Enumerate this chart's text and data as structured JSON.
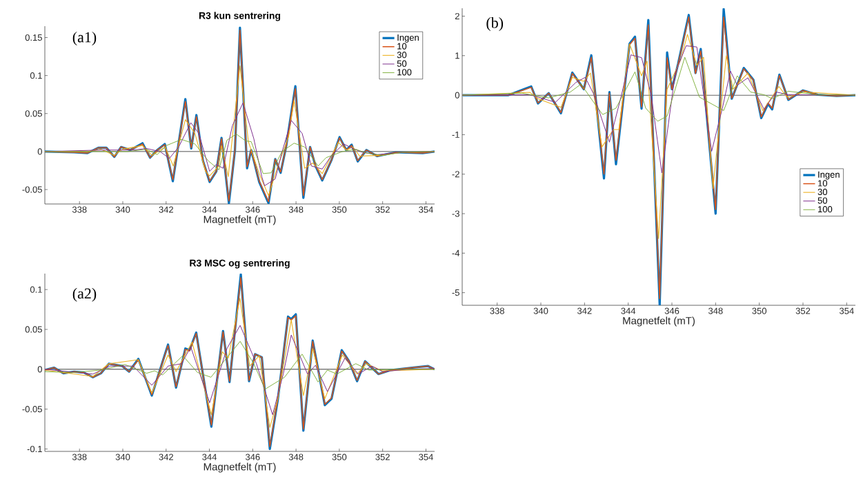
{
  "chart_data": [
    {
      "type": "line",
      "title": "R3 kun sentrering",
      "xlabel": "Magnetfelt (mT)",
      "annotations": [
        "(a1)"
      ],
      "legend": "top right",
      "xlim": [
        336.4,
        354.4
      ],
      "ylim": [
        -0.069,
        0.165
      ],
      "xticks": [
        338,
        340,
        342,
        344,
        346,
        348,
        350,
        352,
        354
      ],
      "yticks": [
        -0.05,
        0,
        0.05,
        0.1,
        0.15
      ],
      "ref_lines": [
        {
          "axis": "y",
          "value": 0,
          "color": "#262626"
        }
      ],
      "series": [
        {
          "name": "Ingen",
          "color": "#0072bd",
          "x": [
            336.4,
            337.75,
            338.37,
            338.87,
            339.24,
            339.61,
            339.92,
            340.35,
            340.91,
            341.26,
            341.59,
            341.94,
            342.31,
            342.89,
            343.16,
            343.4,
            343.7,
            344.01,
            344.32,
            344.56,
            344.9,
            345.18,
            345.41,
            345.74,
            345.93,
            346.3,
            346.73,
            347.04,
            347.29,
            347.54,
            347.97,
            348.34,
            348.65,
            348.9,
            349.21,
            349.64,
            350.01,
            350.32,
            350.57,
            350.85,
            351.25,
            351.75,
            352.61,
            353.85,
            354.4
          ],
          "values": [
            0,
            -0.001,
            -0.002,
            0.005,
            0.005,
            -0.007,
            0.006,
            0.002,
            0.011,
            -0.008,
            0.002,
            0.01,
            -0.039,
            0.069,
            0.004,
            0.048,
            -0.012,
            -0.04,
            -0.026,
            0.018,
            -0.068,
            0.002,
            0.163,
            -0.022,
            0.002,
            -0.04,
            -0.068,
            -0.01,
            -0.028,
            0.006,
            0.086,
            -0.061,
            0.006,
            -0.019,
            -0.038,
            -0.011,
            0.019,
            0.002,
            0.009,
            -0.013,
            0.002,
            -0.006,
            -0.001,
            -0.002,
            0
          ]
        },
        {
          "name": "10",
          "color": "#d95319",
          "x": [
            336.4,
            337.75,
            338.37,
            338.87,
            339.24,
            339.61,
            339.92,
            340.35,
            340.91,
            341.26,
            341.59,
            341.94,
            342.31,
            342.89,
            343.16,
            343.4,
            343.7,
            344.01,
            344.32,
            344.56,
            344.9,
            345.18,
            345.41,
            345.74,
            345.93,
            346.3,
            346.73,
            347.04,
            347.29,
            347.54,
            347.97,
            348.34,
            348.65,
            348.9,
            349.21,
            349.64,
            350.01,
            350.32,
            350.57,
            350.85,
            351.25,
            351.75,
            352.61,
            353.85,
            354.4
          ],
          "values": [
            0,
            -0.001,
            -0.002,
            0.005,
            0.005,
            -0.007,
            0.006,
            0.002,
            0.01,
            -0.008,
            0.002,
            0.009,
            -0.037,
            0.066,
            0.005,
            0.046,
            -0.012,
            -0.039,
            -0.026,
            0.017,
            -0.065,
            0.002,
            0.16,
            -0.02,
            0.002,
            -0.039,
            -0.066,
            -0.01,
            -0.027,
            0.006,
            0.083,
            -0.058,
            0.006,
            -0.018,
            -0.037,
            -0.011,
            0.018,
            0.002,
            0.008,
            -0.012,
            0.002,
            -0.006,
            -0.001,
            -0.002,
            0
          ]
        },
        {
          "name": "30",
          "color": "#edb120",
          "x": [
            336.4,
            338.37,
            338.99,
            339.61,
            339.98,
            340.91,
            341.34,
            341.96,
            342.33,
            342.89,
            343.33,
            343.82,
            344.01,
            344.44,
            344.56,
            344.87,
            345.41,
            345.8,
            346.3,
            346.73,
            347.16,
            347.66,
            347.91,
            348.4,
            348.77,
            349.21,
            349.95,
            350.32,
            350.63,
            350.94,
            351.87,
            352.98,
            354.4
          ],
          "values": [
            0,
            0,
            0.003,
            -0.005,
            0.003,
            0.008,
            -0.005,
            0.006,
            -0.019,
            0.042,
            0.024,
            -0.026,
            -0.032,
            -0.019,
            0.008,
            -0.033,
            0.113,
            0.013,
            -0.029,
            -0.058,
            -0.019,
            0.02,
            0.067,
            -0.022,
            -0.015,
            -0.029,
            0.012,
            0.002,
            0.006,
            -0.006,
            -0.005,
            -0.001,
            0
          ]
        },
        {
          "name": "50",
          "color": "#7e2f8e",
          "x": [
            336.4,
            338.99,
            340.48,
            341.1,
            341.72,
            342.15,
            342.58,
            343.14,
            343.51,
            344.01,
            344.32,
            344.63,
            345.06,
            345.55,
            346.05,
            346.42,
            346.55,
            347.04,
            347.35,
            347.78,
            348.28,
            348.71,
            349.21,
            349.64,
            350.2,
            350.63,
            351.07,
            351.75,
            352.98,
            354.4
          ],
          "values": [
            0,
            0.002,
            0.002,
            0.004,
            0,
            -0.009,
            0.006,
            0.038,
            0.024,
            -0.026,
            -0.017,
            -0.022,
            0.034,
            0.064,
            0.017,
            -0.033,
            -0.045,
            -0.036,
            -0.001,
            0.041,
            0.024,
            -0.019,
            -0.023,
            -0.005,
            0.01,
            0.004,
            -0.001,
            -0.004,
            -0.001,
            0
          ]
        },
        {
          "name": "100",
          "color": "#77ac30",
          "x": [
            336.4,
            340.23,
            341.1,
            341.59,
            342.02,
            342.71,
            343.33,
            343.94,
            344.44,
            344.81,
            345.24,
            345.68,
            345.93,
            346.48,
            346.85,
            347.35,
            347.91,
            348.4,
            349.02,
            349.39,
            350.14,
            350.76,
            351.25,
            352.0,
            352.86,
            354.4
          ],
          "values": [
            0,
            0,
            0.003,
            -0.004,
            0.008,
            0.016,
            0.01,
            -0.012,
            -0.024,
            0.015,
            0.023,
            0.014,
            0.013,
            -0.029,
            -0.028,
            0,
            0.011,
            0.006,
            -0.019,
            -0.008,
            0,
            0.003,
            -0.002,
            -0.005,
            -0.001,
            0
          ]
        }
      ]
    },
    {
      "type": "line",
      "xlabel": "Magnetfelt (mT)",
      "annotations": [
        "(b)"
      ],
      "legend": "right",
      "xlim": [
        336.4,
        354.4
      ],
      "ylim": [
        -5.32,
        2.2
      ],
      "xticks": [
        338,
        340,
        342,
        344,
        346,
        348,
        350,
        352,
        354
      ],
      "yticks": [
        -5,
        -4,
        -3,
        -2,
        -1,
        0,
        1,
        2
      ],
      "ref_lines": [
        {
          "axis": "y",
          "value": 0,
          "color": "#262626"
        }
      ],
      "series": [
        {
          "name": "Ingen",
          "color": "#0072bd",
          "x": [
            336.42,
            338.52,
            339.56,
            339.87,
            340.36,
            340.92,
            341.44,
            341.97,
            342.31,
            342.89,
            343.14,
            343.44,
            344.06,
            344.31,
            344.61,
            344.92,
            345.44,
            345.78,
            346.0,
            346.28,
            346.77,
            347.08,
            347.32,
            348.0,
            348.37,
            348.74,
            349.29,
            349.73,
            350.09,
            350.4,
            350.59,
            350.92,
            351.33,
            352.0,
            352.68,
            353.54,
            354.4
          ],
          "values": [
            0,
            0,
            0.22,
            -0.21,
            0.05,
            -0.46,
            0.57,
            0.15,
            1.01,
            -2.11,
            0.08,
            -1.75,
            1.3,
            1.48,
            -0.34,
            1.9,
            -5.31,
            1.08,
            0.15,
            0.79,
            2.03,
            0.56,
            1.17,
            -3.0,
            2.18,
            -0.09,
            0.69,
            0.39,
            -0.58,
            -0.22,
            -0.36,
            0.52,
            -0.12,
            0.12,
            0.01,
            -0.02,
            0
          ]
        },
        {
          "name": "10",
          "color": "#d95319",
          "x": [
            336.42,
            338.52,
            339.56,
            339.87,
            340.36,
            340.92,
            341.44,
            341.97,
            342.31,
            342.89,
            343.14,
            343.44,
            344.06,
            344.31,
            344.61,
            344.92,
            345.44,
            345.78,
            346.0,
            346.28,
            346.77,
            347.08,
            347.32,
            348.0,
            348.37,
            348.74,
            349.29,
            349.73,
            350.09,
            350.4,
            350.59,
            350.92,
            351.33,
            352.0,
            352.68,
            353.54,
            354.4
          ],
          "values": [
            0,
            0,
            0.2,
            -0.2,
            0.05,
            -0.44,
            0.55,
            0.15,
            0.96,
            -2.0,
            0.05,
            -1.65,
            1.28,
            1.44,
            -0.3,
            1.78,
            -5.15,
            0.95,
            0.15,
            0.78,
            1.98,
            0.55,
            1.12,
            -2.9,
            1.98,
            -0.08,
            0.67,
            0.38,
            -0.55,
            -0.2,
            -0.33,
            0.5,
            -0.11,
            0.12,
            0.01,
            -0.02,
            0
          ]
        },
        {
          "name": "30",
          "color": "#edb120",
          "x": [
            336.42,
            339.5,
            339.87,
            340.92,
            341.44,
            341.97,
            342.27,
            342.8,
            343.32,
            343.57,
            344.06,
            344.61,
            344.86,
            345.39,
            345.78,
            346.4,
            346.71,
            347.14,
            347.45,
            347.88,
            348.49,
            348.8,
            349.48,
            350.16,
            350.9,
            351.27,
            352.07,
            354.4
          ],
          "values": [
            0,
            0.07,
            -0.09,
            -0.31,
            0.45,
            0.35,
            0.56,
            -1.31,
            -0.87,
            -0.87,
            1.3,
            0.49,
            0.86,
            -3.63,
            0.15,
            0.89,
            1.54,
            0.76,
            0.96,
            -2.36,
            1.0,
            0.15,
            0.56,
            -0.39,
            0.22,
            -0.05,
            0.08,
            0
          ]
        },
        {
          "name": "50",
          "color": "#7e2f8e",
          "x": [
            336.42,
            339.5,
            340.67,
            341.6,
            342.03,
            342.4,
            343.14,
            343.69,
            344.12,
            344.61,
            345.05,
            345.54,
            346.15,
            346.65,
            347.14,
            347.82,
            348.31,
            348.68,
            348.99,
            349.48,
            350.22,
            350.77,
            351.33,
            354.4
          ],
          "values": [
            0,
            0.01,
            -0.18,
            0.32,
            0.45,
            0.05,
            -1.19,
            0,
            1.02,
            0.95,
            0.01,
            -1.97,
            0.56,
            1.25,
            1.22,
            -1.42,
            -0.33,
            0.61,
            0.25,
            0.44,
            -0.36,
            0.08,
            0.01,
            0
          ]
        },
        {
          "name": "100",
          "color": "#77ac30",
          "x": [
            336.42,
            339.14,
            340.36,
            341.35,
            341.84,
            342.34,
            342.83,
            343.44,
            344.31,
            344.8,
            345.35,
            345.78,
            346.59,
            347.26,
            348.37,
            348.99,
            349.6,
            350.22,
            350.59,
            351.33,
            352.68,
            354.4
          ],
          "values": [
            0,
            0.05,
            -0.07,
            0.08,
            0.28,
            -0.12,
            -0.49,
            -0.33,
            0.59,
            -0.33,
            -0.66,
            -0.53,
            0.96,
            -0.05,
            -0.39,
            0.49,
            0.08,
            0.01,
            -0.09,
            0.1,
            0.01,
            0
          ]
        }
      ]
    },
    {
      "type": "line",
      "title": "R3 MSC og sentrering",
      "xlabel": "Magnetfelt (mT)",
      "annotations": [
        "(a2)"
      ],
      "xlim": [
        336.4,
        354.4
      ],
      "ylim": [
        -0.103,
        0.12
      ],
      "xticks": [
        338,
        340,
        342,
        344,
        346,
        348,
        350,
        352,
        354
      ],
      "yticks": [
        -0.1,
        -0.05,
        0,
        0.05,
        0.1
      ],
      "ref_lines": [
        {
          "axis": "y",
          "value": 0,
          "color": "#262626"
        }
      ],
      "series": [
        {
          "color": "#0072bd",
          "x": [
            336.4,
            336.82,
            337.26,
            337.75,
            338.19,
            338.62,
            338.99,
            339.36,
            339.98,
            340.29,
            340.72,
            341.34,
            342.09,
            342.46,
            342.89,
            343.08,
            343.39,
            344.09,
            344.63,
            344.93,
            345.45,
            345.83,
            346.11,
            346.42,
            346.79,
            347.16,
            347.63,
            347.78,
            347.99,
            348.34,
            348.77,
            349.33,
            349.64,
            350.11,
            350.45,
            350.82,
            351.19,
            351.81,
            352.37,
            353.36,
            354.1,
            354.4
          ],
          "values": [
            -0.001,
            0.002,
            -0.005,
            -0.003,
            -0.004,
            -0.01,
            -0.005,
            0.007,
            0.004,
            -0.003,
            0.013,
            -0.033,
            0.031,
            -0.023,
            0.026,
            0.024,
            0.046,
            -0.072,
            0.048,
            -0.016,
            0.119,
            -0.015,
            0.019,
            0.015,
            -0.1,
            -0.038,
            0.066,
            0.063,
            0.069,
            -0.077,
            0.036,
            -0.045,
            -0.037,
            0.024,
            0.01,
            -0.015,
            0.01,
            -0.006,
            -0.001,
            0.002,
            0.004,
            0
          ]
        },
        {
          "color": "#d95319",
          "x": [
            336.4,
            336.82,
            337.26,
            337.75,
            338.19,
            338.62,
            338.99,
            339.36,
            339.98,
            340.29,
            340.72,
            341.34,
            342.09,
            342.46,
            342.89,
            343.08,
            343.39,
            344.09,
            344.63,
            344.93,
            345.45,
            345.83,
            346.11,
            346.42,
            346.79,
            347.16,
            347.63,
            347.78,
            347.99,
            348.34,
            348.77,
            349.33,
            349.64,
            350.11,
            350.45,
            350.82,
            351.19,
            351.81,
            352.37,
            353.36,
            354.1,
            354.4
          ],
          "values": [
            -0.001,
            0.002,
            -0.005,
            -0.003,
            -0.004,
            -0.01,
            -0.005,
            0.007,
            0.004,
            -0.003,
            0.012,
            -0.032,
            0.03,
            -0.022,
            0.025,
            0.023,
            0.045,
            -0.07,
            0.047,
            -0.015,
            0.115,
            -0.014,
            0.019,
            0.015,
            -0.097,
            -0.037,
            0.065,
            0.062,
            0.067,
            -0.075,
            0.035,
            -0.044,
            -0.036,
            0.023,
            0.01,
            -0.014,
            0.01,
            -0.006,
            -0.001,
            0.002,
            0.004,
            0
          ]
        },
        {
          "color": "#edb120",
          "x": [
            336.4,
            338.62,
            339.36,
            340.72,
            341.34,
            342.09,
            342.46,
            343.2,
            344.09,
            344.59,
            344.87,
            345.41,
            345.86,
            346.3,
            346.79,
            347.16,
            347.78,
            348.34,
            348.77,
            349.33,
            350.14,
            350.82,
            351.25,
            352.0,
            354.4
          ],
          "values": [
            -0.001,
            -0.009,
            0.007,
            0.012,
            -0.03,
            0.018,
            -0.003,
            0.034,
            -0.057,
            0.022,
            0.014,
            0.089,
            0.004,
            0.017,
            -0.073,
            -0.037,
            0.062,
            -0.033,
            0.026,
            -0.037,
            0.018,
            -0.006,
            0.007,
            -0.002,
            0
          ]
        },
        {
          "color": "#7e2f8e",
          "x": [
            336.4,
            338.62,
            339.42,
            340.48,
            341.34,
            342.09,
            342.71,
            343.14,
            344.01,
            344.81,
            345.42,
            346.17,
            346.92,
            347.41,
            347.78,
            348.53,
            348.9,
            349.45,
            350.26,
            350.88,
            351.5,
            352.0,
            353.11,
            354.4
          ],
          "values": [
            0,
            -0.006,
            0.004,
            0.004,
            -0.02,
            0.004,
            0.007,
            0.028,
            -0.042,
            0.026,
            0.055,
            0.007,
            -0.057,
            -0.006,
            0.043,
            -0.006,
            0.005,
            -0.028,
            0.014,
            -0.006,
            0.004,
            -0.003,
            0,
            0.001
          ]
        },
        {
          "color": "#77ac30",
          "x": [
            336.4,
            337.75,
            338.99,
            340.1,
            341.1,
            341.47,
            341.84,
            342.77,
            343.45,
            344.07,
            345.42,
            346.05,
            346.57,
            347.47,
            348.28,
            349.02,
            349.45,
            349.89,
            350.76,
            351.37,
            352.61,
            354.4
          ],
          "values": [
            -0.003,
            -0.004,
            -0.001,
            0.006,
            -0.005,
            -0.002,
            -0.007,
            0.017,
            -0.004,
            -0.01,
            0.035,
            0.007,
            -0.025,
            -0.01,
            0.019,
            -0.016,
            -0.001,
            -0.006,
            0.007,
            -0.001,
            0,
            0
          ]
        }
      ]
    }
  ]
}
